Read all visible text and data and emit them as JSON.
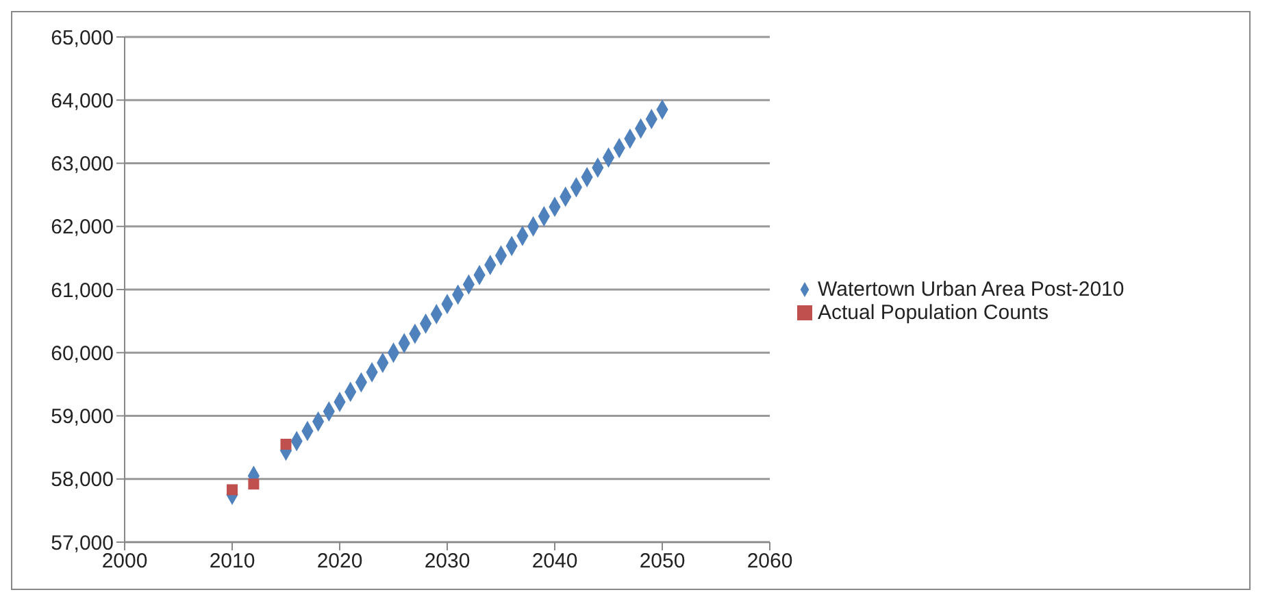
{
  "chart_data": {
    "type": "scatter",
    "xlim": [
      2000,
      2060
    ],
    "xticks": [
      2000,
      2010,
      2020,
      2030,
      2040,
      2050,
      2060
    ],
    "ylim": [
      57000,
      65000
    ],
    "yticks": [
      {
        "value": 57000,
        "label": "57,000"
      },
      {
        "value": 58000,
        "label": "58,000"
      },
      {
        "value": 59000,
        "label": "59,000"
      },
      {
        "value": 60000,
        "label": "60,000"
      },
      {
        "value": 61000,
        "label": "61,000"
      },
      {
        "value": 62000,
        "label": "62,000"
      },
      {
        "value": 63000,
        "label": "63,000"
      },
      {
        "value": 64000,
        "label": "64,000"
      },
      {
        "value": 65000,
        "label": "65,000"
      }
    ],
    "grid": "y",
    "legend": "right",
    "series": [
      {
        "name": "Watertown Urban Area Post-2010",
        "color": "#4f81bd",
        "marker": "diamond",
        "x": [
          2010,
          2012,
          2015,
          2016,
          2017,
          2018,
          2019,
          2020,
          2021,
          2022,
          2023,
          2024,
          2025,
          2026,
          2027,
          2028,
          2029,
          2030,
          2031,
          2032,
          2033,
          2034,
          2035,
          2036,
          2037,
          2038,
          2039,
          2040,
          2041,
          2042,
          2043,
          2044,
          2045,
          2046,
          2047,
          2048,
          2049,
          2050
        ],
        "values": [
          57750,
          58050,
          58450,
          58600,
          58760,
          58910,
          59070,
          59220,
          59380,
          59530,
          59690,
          59840,
          60000,
          60150,
          60300,
          60460,
          60610,
          60770,
          60920,
          61080,
          61230,
          61390,
          61540,
          61690,
          61850,
          62000,
          62160,
          62310,
          62470,
          62620,
          62780,
          62930,
          63090,
          63240,
          63390,
          63550,
          63700,
          63850
        ]
      },
      {
        "name": "Actual Population Counts",
        "color": "#c0504d",
        "marker": "square",
        "x": [
          2010,
          2012,
          2015
        ],
        "values": [
          57830,
          57920,
          58550
        ]
      }
    ]
  }
}
